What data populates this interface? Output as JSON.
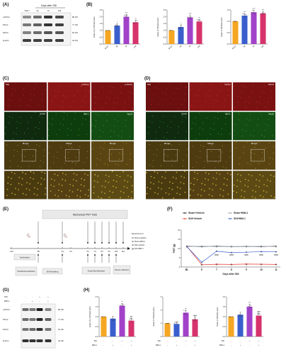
{
  "panels": {
    "A": {
      "letter": "(A)",
      "header_days": "Days after SNI",
      "lanes": [
        "Sham",
        "3d",
        "7d",
        "14d"
      ],
      "rows": [
        {
          "protein": "p-PKCα",
          "kd": "80 KD"
        },
        {
          "protein": "PKCα",
          "kd": "77 KD"
        },
        {
          "protein": "NOX4",
          "kd": "62 KD"
        },
        {
          "protein": "β-actin",
          "kd": "42 KD"
        }
      ]
    },
    "B": {
      "letter": "(B)",
      "charts": [
        {
          "ylabel": "Ratio of p-PKCα/β-actin",
          "categories": [
            "Sham",
            "3d",
            "7d",
            "14d"
          ],
          "values": [
            1.0,
            1.35,
            2.0,
            1.6
          ],
          "ylim": [
            0,
            2.5
          ],
          "yticks": [
            "0.0",
            "0.5",
            "1.0",
            "1.5",
            "2.0",
            "2.5"
          ],
          "sig": [
            "",
            "*",
            "****",
            "**"
          ]
        },
        {
          "ylabel": "Ratio of PKCα/β-actin",
          "categories": [
            "Sham",
            "3d",
            "7d",
            "14d"
          ],
          "values": [
            1.0,
            1.25,
            1.95,
            1.65
          ],
          "ylim": [
            0,
            2.5
          ],
          "yticks": [
            "0.0",
            "0.5",
            "1.0",
            "1.5",
            "2.0",
            "2.5"
          ],
          "sig": [
            "",
            "*",
            "****",
            "***"
          ]
        },
        {
          "ylabel": "Ratio of NOX4/β-actin",
          "categories": [
            "Sham",
            "3d",
            "7d",
            "14d"
          ],
          "values": [
            1.0,
            1.25,
            1.4,
            1.35
          ],
          "ylim": [
            0,
            1.5
          ],
          "yticks": [
            "0.0",
            "0.5",
            "1.0",
            "1.5"
          ],
          "sig": [
            "",
            "***",
            "****",
            "***"
          ]
        }
      ],
      "bar_colors": [
        "#f5a623",
        "#3a5fcd",
        "#a142c9",
        "#d6336c"
      ]
    },
    "C": {
      "letter": "(C)",
      "top": [
        "SNI",
        "p-PKCα",
        "p-PKCα"
      ],
      "mid": [
        "GFAP",
        "IBA-1",
        "NeuN"
      ],
      "merge": [
        "Merge",
        "Merge",
        "Merge"
      ]
    },
    "D": {
      "letter": "(D)",
      "top": [
        "SNI",
        "NOX4",
        "NOX4"
      ],
      "mid": [
        "GFAP",
        "IBA-1",
        "NeuN"
      ],
      "merge": [
        "Merge",
        "Merge",
        "Merge"
      ]
    },
    "E": {
      "letter": "(E)",
      "pwt_title": "Mechanical PWT Tests",
      "days_top": [
        "-12d",
        "-8d",
        "-1d",
        "0d",
        "6d",
        "7d",
        "8d",
        "9d",
        "10d",
        "11d"
      ],
      "boxes": [
        "Acclimation",
        "Intrathecal catheters",
        "SNI Modeling",
        "Drug Administration",
        "Tissue collection"
      ],
      "experiment": {
        "title": "Experiment 4:",
        "groups": [
          "(1) Sham+Vehicle",
          "(2) Sham+BIM-1",
          "(3) SNI+Vehicle",
          "(4) SNI+BIM-1"
        ]
      }
    },
    "F": {
      "letter": "(F)",
      "ylabel": "PWT (g)",
      "xlabel": "Days after SNI",
      "x": [
        "BL",
        "6",
        "7",
        "8",
        "9",
        "10",
        "11"
      ],
      "yticks": [
        "0",
        "5",
        "10",
        "15",
        "20"
      ],
      "ylim": [
        0,
        20
      ],
      "series": [
        {
          "name": "Sham+Vehicle",
          "color": "#222222",
          "values": [
            11.2,
            11.0,
            11.2,
            11.0,
            11.1,
            11.0,
            11.2
          ]
        },
        {
          "name": "Sham+BIM-1",
          "color": "#9aa3ad",
          "values": [
            11.0,
            11.2,
            11.0,
            11.1,
            11.0,
            11.2,
            11.0
          ]
        },
        {
          "name": "SNI+Vehicle",
          "color": "#e63b2e",
          "values": [
            11.1,
            1.2,
            1.5,
            1.4,
            1.6,
            1.5,
            1.4
          ]
        },
        {
          "name": "SNI+BIM-1",
          "color": "#3a5fcd",
          "values": [
            11.0,
            2.5,
            8.5,
            7.8,
            8.0,
            8.3,
            8.2
          ]
        }
      ],
      "sig_marks": [
        "####",
        "####",
        "####",
        "####",
        "####"
      ],
      "sig_under": [
        "***",
        "***",
        "***",
        "***",
        "***",
        "***"
      ]
    },
    "G": {
      "letter": "(G)",
      "row_labels": [
        "SNI",
        "BIM-1"
      ],
      "sni": [
        "-",
        "-",
        "+",
        "+"
      ],
      "bim": [
        "-",
        "+",
        "-",
        "+"
      ],
      "rows": [
        {
          "protein": "p-PKCα",
          "kd": "80 KD"
        },
        {
          "protein": "PKCα",
          "kd": "77 KD"
        },
        {
          "protein": "NOX4",
          "kd": "62 KD"
        },
        {
          "protein": "β-actin",
          "kd": "42 KD"
        }
      ]
    },
    "H": {
      "letter": "(H)",
      "charts": [
        {
          "ylabel": "Ratio of p-PKCα/β-actin",
          "values": [
            1.0,
            0.9,
            1.55,
            0.8
          ],
          "ylim": [
            0,
            2.0
          ],
          "yticks": [
            "0.0",
            "0.5",
            "1.0",
            "1.5",
            "2.0"
          ],
          "sig": [
            "",
            "",
            "**",
            "##"
          ]
        },
        {
          "ylabel": "Ratio of PKCα/β-actin",
          "values": [
            1.0,
            0.95,
            1.8,
            1.3
          ],
          "ylim": [
            0,
            3
          ],
          "yticks": [
            "0",
            "1",
            "2",
            "3"
          ],
          "sig": [
            "",
            "",
            "***",
            "###"
          ]
        },
        {
          "ylabel": "Ratio of NOX4/β-actin",
          "values": [
            1.0,
            1.1,
            1.5,
            1.05
          ],
          "ylim": [
            0,
            2.0
          ],
          "yticks": [
            "0.0",
            "0.5",
            "1.0",
            "1.5",
            "2.0"
          ],
          "sig": [
            "",
            "",
            "***",
            "###"
          ]
        }
      ],
      "bar_colors": [
        "#f5a623",
        "#3a5fcd",
        "#a142c9",
        "#d6336c"
      ],
      "sni": [
        "-",
        "-",
        "+",
        "+"
      ],
      "bim": [
        "-",
        "+",
        "-",
        "+"
      ],
      "row_labels": [
        "SNI",
        "BIM-1"
      ]
    }
  }
}
